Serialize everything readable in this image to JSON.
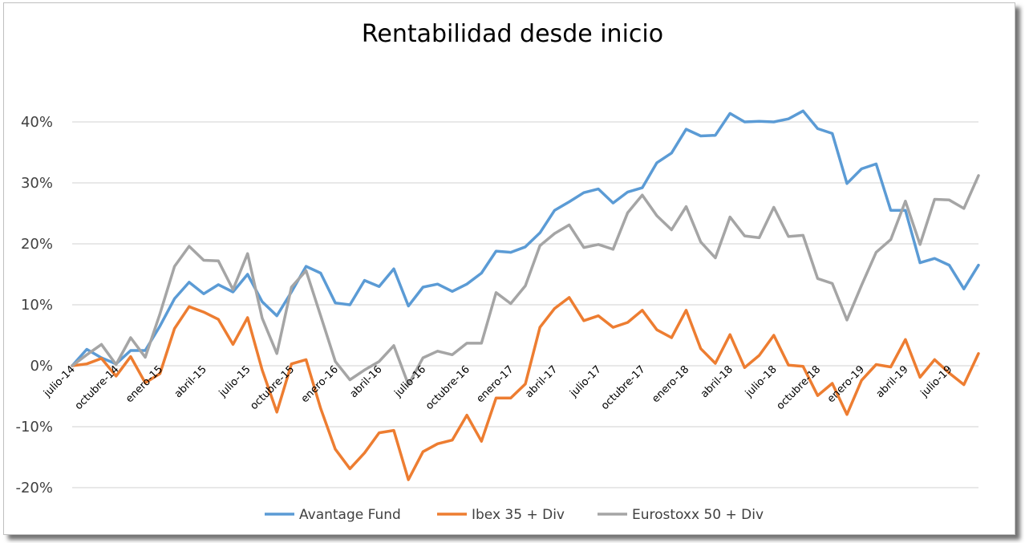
{
  "chart_data": {
    "type": "line",
    "title": "Rentabilidad desde inicio",
    "xlabel": "",
    "ylabel": "",
    "ylim": [
      -0.2,
      0.4
    ],
    "yticks": [
      -0.2,
      -0.1,
      0.0,
      0.1,
      0.2,
      0.3,
      0.4
    ],
    "ytick_labels": [
      "-20%",
      "-10%",
      "0%",
      "10%",
      "20%",
      "30%",
      "40%"
    ],
    "grid": true,
    "legend_position": "bottom",
    "x_tick_labels": [
      {
        "i": 0,
        "label": "julio-14"
      },
      {
        "i": 3,
        "label": "octubre-14"
      },
      {
        "i": 6,
        "label": "enero-15"
      },
      {
        "i": 9,
        "label": "abril-15"
      },
      {
        "i": 12,
        "label": "julio-15"
      },
      {
        "i": 15,
        "label": "octubre-15"
      },
      {
        "i": 18,
        "label": "enero-16"
      },
      {
        "i": 21,
        "label": "abril-16"
      },
      {
        "i": 24,
        "label": "julio-16"
      },
      {
        "i": 27,
        "label": "octubre-16"
      },
      {
        "i": 30,
        "label": "enero-17"
      },
      {
        "i": 33,
        "label": "abril-17"
      },
      {
        "i": 36,
        "label": "julio-17"
      },
      {
        "i": 39,
        "label": "octubre-17"
      },
      {
        "i": 42,
        "label": "enero-18"
      },
      {
        "i": 45,
        "label": "abril-18"
      },
      {
        "i": 48,
        "label": "julio-18"
      },
      {
        "i": 51,
        "label": "octubre-18"
      },
      {
        "i": 54,
        "label": "enero-19"
      },
      {
        "i": 57,
        "label": "abril-19"
      },
      {
        "i": 60,
        "label": "julio-19"
      }
    ],
    "series": [
      {
        "name": "Avantage Fund",
        "color": "#5b9bd5",
        "values": [
          0.0,
          0.027,
          0.013,
          0.003,
          0.025,
          0.025,
          0.065,
          0.11,
          0.137,
          0.118,
          0.133,
          0.121,
          0.15,
          0.105,
          0.082,
          0.121,
          0.163,
          0.152,
          0.103,
          0.1,
          0.14,
          0.13,
          0.159,
          0.098,
          0.129,
          0.134,
          0.122,
          0.134,
          0.152,
          0.188,
          0.186,
          0.195,
          0.218,
          0.255,
          0.269,
          0.284,
          0.29,
          0.267,
          0.285,
          0.292,
          0.333,
          0.349,
          0.388,
          0.377,
          0.378,
          0.414,
          0.4,
          0.401,
          0.4,
          0.405,
          0.418,
          0.389,
          0.381,
          0.299,
          0.323,
          0.331,
          0.255,
          0.255,
          0.169,
          0.176,
          0.165,
          0.126,
          0.165
        ]
      },
      {
        "name": "Ibex 35 + Div",
        "color": "#ed7d31",
        "values": [
          0.0,
          0.003,
          0.012,
          -0.017,
          0.015,
          -0.028,
          -0.013,
          0.061,
          0.097,
          0.088,
          0.076,
          0.035,
          0.079,
          -0.007,
          -0.076,
          0.003,
          0.01,
          -0.07,
          -0.137,
          -0.169,
          -0.143,
          -0.11,
          -0.106,
          -0.187,
          -0.141,
          -0.128,
          -0.122,
          -0.081,
          -0.124,
          -0.053,
          -0.053,
          -0.03,
          0.063,
          0.094,
          0.112,
          0.074,
          0.082,
          0.063,
          0.071,
          0.091,
          0.059,
          0.046,
          0.091,
          0.028,
          0.004,
          0.051,
          -0.003,
          0.017,
          0.05,
          0.001,
          -0.001,
          -0.049,
          -0.029,
          -0.08,
          -0.024,
          0.002,
          -0.002,
          0.043,
          -0.019,
          0.01,
          -0.012,
          -0.031,
          0.02
        ]
      },
      {
        "name": "Eurostoxx 50 + Div",
        "color": "#a5a5a5",
        "values": [
          0.0,
          0.018,
          0.035,
          0.002,
          0.046,
          0.014,
          0.085,
          0.163,
          0.196,
          0.173,
          0.172,
          0.125,
          0.184,
          0.078,
          0.02,
          0.129,
          0.156,
          0.082,
          0.007,
          -0.023,
          -0.007,
          0.007,
          0.033,
          -0.031,
          0.013,
          0.024,
          0.018,
          0.037,
          0.037,
          0.12,
          0.102,
          0.131,
          0.197,
          0.217,
          0.231,
          0.194,
          0.199,
          0.191,
          0.251,
          0.28,
          0.246,
          0.223,
          0.261,
          0.203,
          0.177,
          0.244,
          0.213,
          0.21,
          0.26,
          0.212,
          0.214,
          0.143,
          0.135,
          0.075,
          0.132,
          0.186,
          0.207,
          0.27,
          0.199,
          0.273,
          0.272,
          0.258,
          0.312
        ]
      }
    ]
  }
}
